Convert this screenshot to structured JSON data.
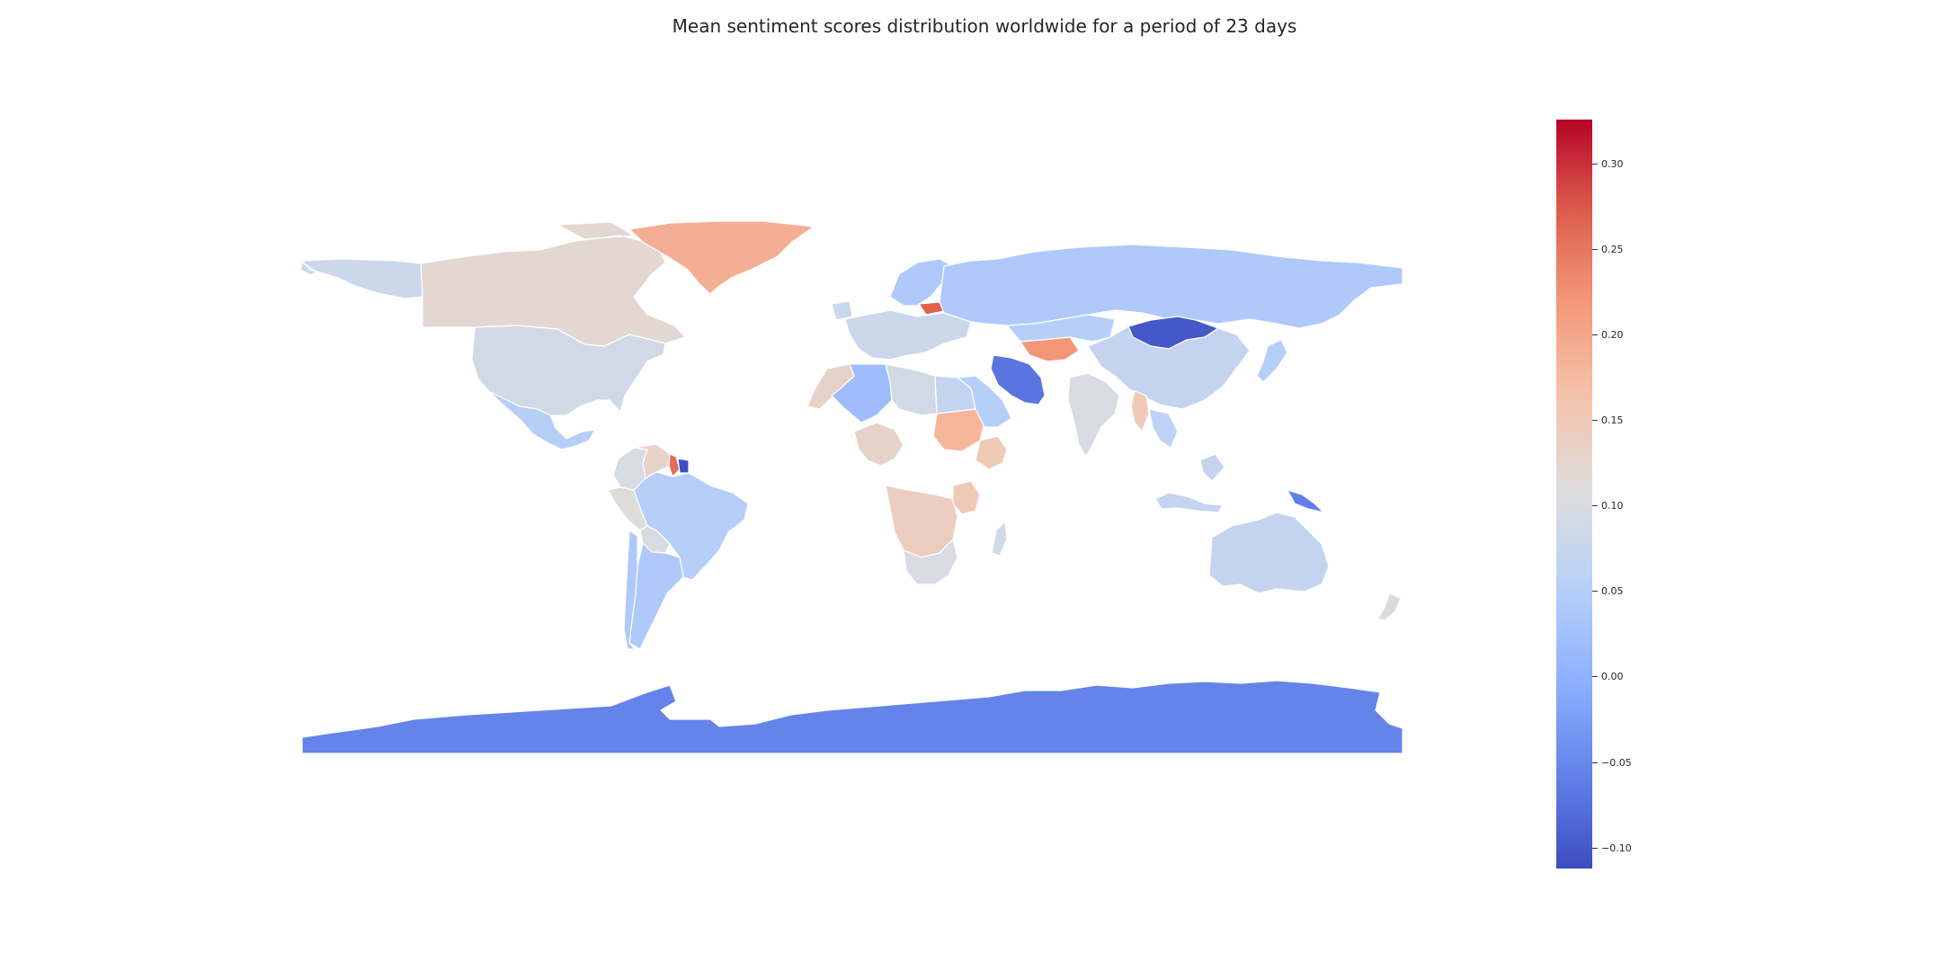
{
  "title": "Mean sentiment scores distribution worldwide for a period of 23 days",
  "colormap": {
    "name": "coolwarm",
    "vmin": -0.112,
    "vmax": 0.326,
    "ticks": [
      "0.30",
      "0.25",
      "0.20",
      "0.15",
      "0.10",
      "0.05",
      "0.00",
      "−0.05",
      "−0.10"
    ],
    "tick_values": [
      0.3,
      0.25,
      0.2,
      0.15,
      0.1,
      0.05,
      0.0,
      -0.05,
      -0.1
    ]
  },
  "colors": {
    "border": "#ffffff",
    "title": "#262626",
    "background": "#ffffff"
  },
  "regions": [
    {
      "name": "Canada",
      "value": 0.12
    },
    {
      "name": "Alaska",
      "value": 0.08
    },
    {
      "name": "Greenland",
      "value": 0.19
    },
    {
      "name": "United States",
      "value": 0.09
    },
    {
      "name": "Mexico",
      "value": 0.05
    },
    {
      "name": "Colombia",
      "value": 0.1
    },
    {
      "name": "Venezuela",
      "value": 0.13
    },
    {
      "name": "Guyana",
      "value": 0.26
    },
    {
      "name": "Suriname",
      "value": -0.11
    },
    {
      "name": "Peru",
      "value": 0.11
    },
    {
      "name": "Brazil",
      "value": 0.05
    },
    {
      "name": "Bolivia",
      "value": 0.1
    },
    {
      "name": "Argentina",
      "value": 0.04
    },
    {
      "name": "Chile",
      "value": 0.04
    },
    {
      "name": "Russia",
      "value": 0.04
    },
    {
      "name": "Mongolia",
      "value": -0.1
    },
    {
      "name": "China",
      "value": 0.07
    },
    {
      "name": "Kazakhstan",
      "value": 0.05
    },
    {
      "name": "Turkmenistan",
      "value": 0.22
    },
    {
      "name": "Iran",
      "value": -0.07
    },
    {
      "name": "India",
      "value": 0.1
    },
    {
      "name": "Myanmar",
      "value": 0.15
    },
    {
      "name": "Southeast Asia",
      "value": 0.06
    },
    {
      "name": "Saudi Arabia",
      "value": 0.05
    },
    {
      "name": "Algeria",
      "value": 0.02
    },
    {
      "name": "Libya",
      "value": 0.09
    },
    {
      "name": "Egypt",
      "value": 0.07
    },
    {
      "name": "Sudan",
      "value": 0.18
    },
    {
      "name": "Ethiopia",
      "value": 0.15
    },
    {
      "name": "Morocco",
      "value": 0.13
    },
    {
      "name": "West Africa",
      "value": 0.13
    },
    {
      "name": "Central Africa",
      "value": 0.14
    },
    {
      "name": "Tanzania",
      "value": 0.15
    },
    {
      "name": "South Africa",
      "value": 0.1
    },
    {
      "name": "Madagascar",
      "value": 0.09
    },
    {
      "name": "Europe",
      "value": 0.08
    },
    {
      "name": "Baltics",
      "value": 0.27
    },
    {
      "name": "Scandinavia",
      "value": 0.04
    },
    {
      "name": "Australia",
      "value": 0.07
    },
    {
      "name": "Papua New Guinea",
      "value": -0.06
    },
    {
      "name": "New Zealand",
      "value": 0.1
    },
    {
      "name": "Indonesia",
      "value": 0.07
    },
    {
      "name": "Japan",
      "value": 0.05
    },
    {
      "name": "Antarctica",
      "value": -0.055
    }
  ]
}
